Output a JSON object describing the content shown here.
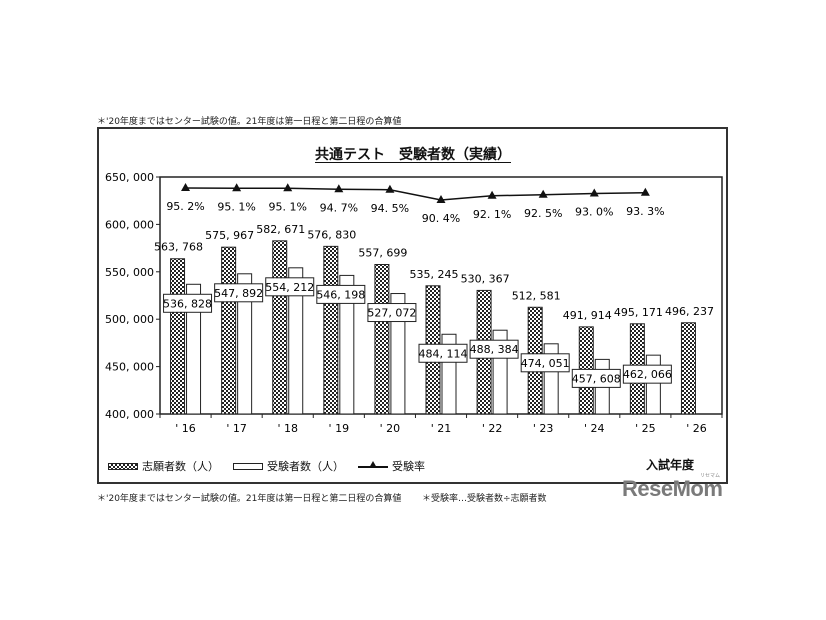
{
  "notes": {
    "top": "＊'20年度まではセンター試験の値。21年度は第一日程と第二日程の合算値",
    "bottom_left": "＊'20年度まではセンター試験の値。21年度は第一日程と第二日程の合算値",
    "bottom_right": "＊受験率…受験者数÷志願者数"
  },
  "watermark": {
    "text": "ReseMom",
    "sub": "リセマム"
  },
  "chart_data": {
    "type": "bar",
    "title": "共通テスト　受験者数（実績）",
    "xlabel": "入試年度",
    "ylabel": "",
    "ylim": [
      400000,
      650000
    ],
    "yticks": [
      "650,000",
      "600,000",
      "550,000",
      "500,000",
      "450,000",
      "400,000"
    ],
    "categories": [
      "'16",
      "'17",
      "'18",
      "'19",
      "'20",
      "'21",
      "'22",
      "'23",
      "'24",
      "'25",
      "'26"
    ],
    "series": [
      {
        "name": "志願者数（人）",
        "type": "bar",
        "pattern": "checkered",
        "values": [
          563768,
          575967,
          582671,
          576830,
          557699,
          535245,
          530367,
          512581,
          491914,
          495171,
          496237
        ],
        "labels": [
          "563,768",
          "575,967",
          "582,671",
          "576,830",
          "557,699",
          "535,245",
          "530,367",
          "512,581",
          "491,914",
          "495,171",
          "496,237"
        ]
      },
      {
        "name": "受験者数（人）",
        "type": "bar",
        "pattern": "white",
        "values": [
          536828,
          547892,
          554212,
          546198,
          527072,
          484114,
          488384,
          474051,
          457608,
          462066,
          null
        ],
        "labels": [
          "536,828",
          "547,892",
          "554,212",
          "546,198",
          "527,072",
          "484,114",
          "488,384",
          "474,051",
          "457,608",
          "462,066",
          ""
        ]
      },
      {
        "name": "受験率",
        "type": "line",
        "marker": "triangle",
        "values": [
          95.2,
          95.1,
          95.1,
          94.7,
          94.5,
          90.4,
          92.1,
          92.5,
          93.0,
          93.3,
          null
        ],
        "labels": [
          "95.2%",
          "95.1%",
          "95.1%",
          "94.7%",
          "94.5%",
          "90.4%",
          "92.1%",
          "92.5%",
          "93.0%",
          "93.3%",
          ""
        ]
      }
    ],
    "legend": [
      "志願者数（人）",
      "受験者数（人）",
      "受験率"
    ],
    "legend_position": "bottom",
    "grid": false
  }
}
